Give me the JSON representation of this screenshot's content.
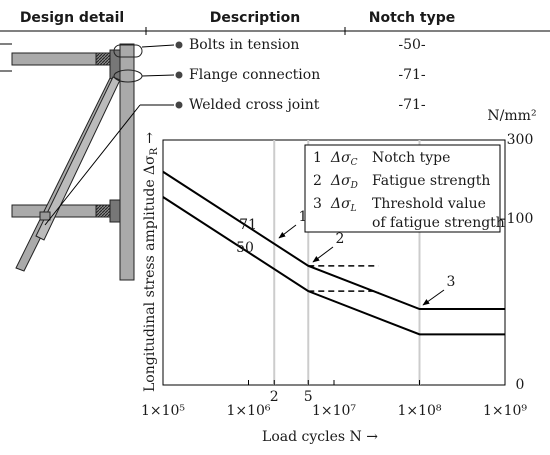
{
  "table": {
    "headers": [
      "Design detail",
      "Description",
      "Notch type"
    ],
    "rows": [
      [
        "Bolts in tension",
        "-50-"
      ],
      [
        "Flange connection",
        "-71-"
      ],
      [
        "Welded cross joint",
        "-71-"
      ]
    ]
  },
  "chart_data": {
    "type": "line",
    "ylabel": "Longitudinal stress amplitude Δσ",
    "ylabel_sub": "R",
    "ylabel_arrow": "→",
    "xlabel": "Load cycles N →",
    "unit": "N/mm²",
    "y_bottom_label": "0",
    "xscale": "log",
    "yscale": "log",
    "xlim": [
      100000,
      1000000000
    ],
    "ylim": [
      10,
      300
    ],
    "xticks": [
      {
        "value": 100000,
        "label": "1×10⁵"
      },
      {
        "value": 1000000,
        "label": "1×10⁶"
      },
      {
        "value": 10000000,
        "label": "1×10⁷"
      },
      {
        "value": 100000000,
        "label": "1×10⁸"
      },
      {
        "value": 1000000000,
        "label": "1×10⁹"
      }
    ],
    "yticks": [
      100,
      300
    ],
    "x_marks": [
      {
        "value": 2000000,
        "label": "2"
      },
      {
        "value": 5000000,
        "label": "5"
      }
    ],
    "vlines": [
      2000000,
      5000000,
      100000000
    ],
    "series": [
      {
        "name": "71",
        "color": "#000000",
        "x": [
          100000,
          5000000,
          100000000,
          1000000000
        ],
        "values": [
          193,
          52.3,
          28.7,
          28.7
        ]
      },
      {
        "name": "50",
        "color": "#000000",
        "x": [
          100000,
          5000000,
          100000000,
          1000000000
        ],
        "values": [
          136,
          36.8,
          20.2,
          20.2
        ]
      },
      {
        "color": "#000000",
        "dashed": true,
        "x": [
          5000000,
          33000000
        ],
        "values": [
          52.3,
          52.3
        ]
      },
      {
        "color": "#000000",
        "dashed": true,
        "x": [
          5000000,
          33000000
        ],
        "values": [
          36.8,
          36.8
        ]
      }
    ],
    "annotations": [
      "1",
      "2",
      "3"
    ],
    "legend_items": [
      {
        "num": "1",
        "symbol": "Δσ",
        "sub": "C",
        "text": [
          "Notch type"
        ]
      },
      {
        "num": "2",
        "symbol": "Δσ",
        "sub": "D",
        "text": [
          "Fatigue strength"
        ]
      },
      {
        "num": "3",
        "symbol": "Δσ",
        "sub": "L",
        "text": [
          "Threshold value",
          "of fatigue strength"
        ]
      }
    ]
  }
}
